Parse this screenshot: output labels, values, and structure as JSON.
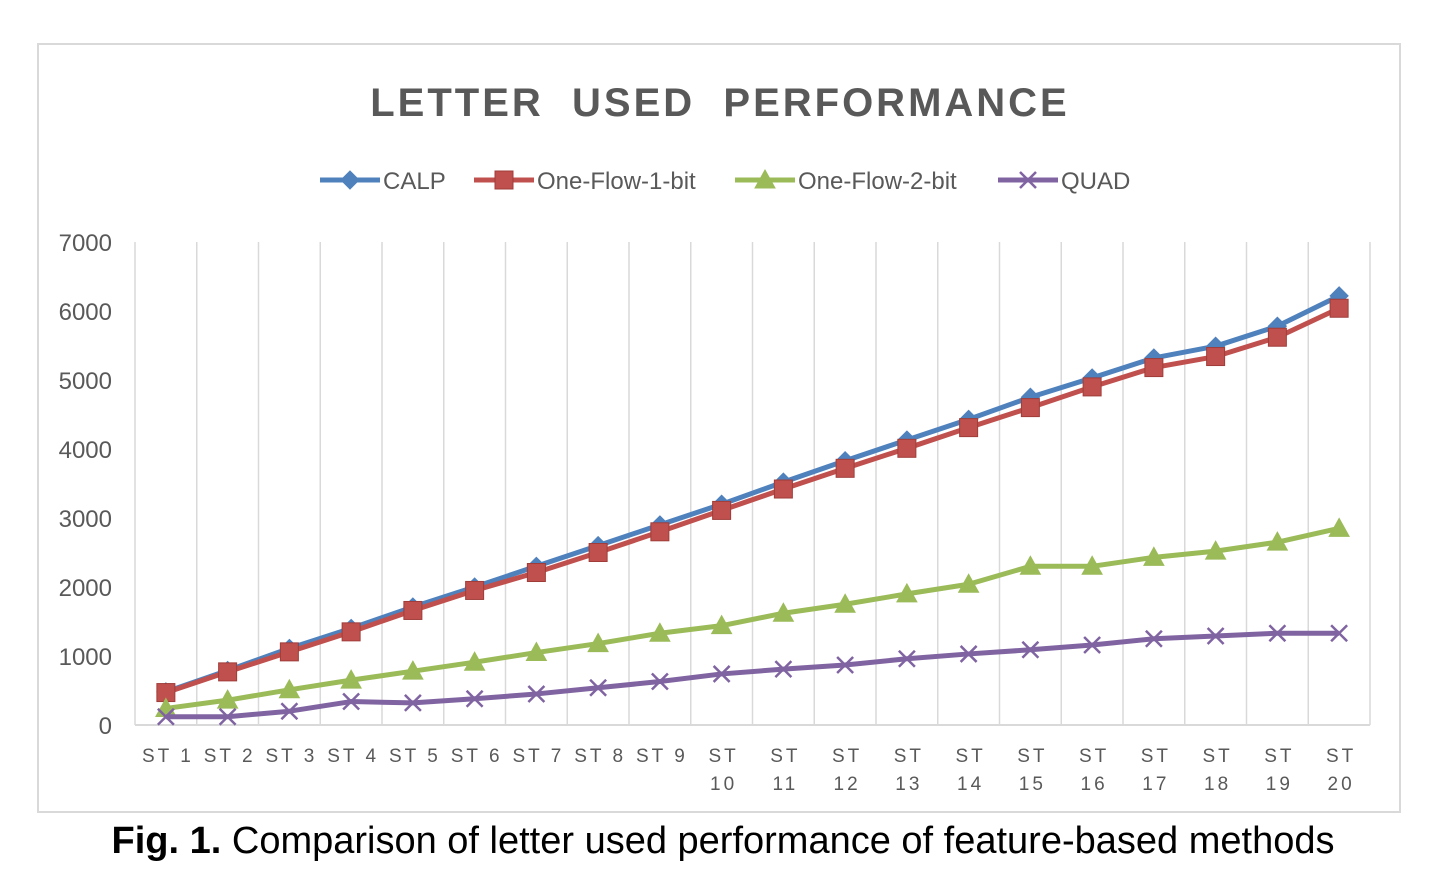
{
  "caption": {
    "label": "Fig. 1.",
    "text": "Comparison of letter used performance of feature-based methods"
  },
  "chart_data": {
    "type": "line",
    "title": "LETTER  USED  PERFORMANCE",
    "xlabel": "",
    "ylabel": "",
    "categories": [
      "ST 1",
      "ST 2",
      "ST 3",
      "ST 4",
      "ST 5",
      "ST 6",
      "ST 7",
      "ST 8",
      "ST 9",
      "ST 10",
      "ST 11",
      "ST 12",
      "ST 13",
      "ST 14",
      "ST 15",
      "ST 16",
      "ST 17",
      "ST 18",
      "ST 19",
      "ST 20"
    ],
    "category_lines": [
      [
        "ST 1"
      ],
      [
        "ST 2"
      ],
      [
        "ST 3"
      ],
      [
        "ST 4"
      ],
      [
        "ST 5"
      ],
      [
        "ST 6"
      ],
      [
        "ST 7"
      ],
      [
        "ST 8"
      ],
      [
        "ST 9"
      ],
      [
        "ST",
        "10"
      ],
      [
        "ST",
        "11"
      ],
      [
        "ST",
        "12"
      ],
      [
        "ST",
        "13"
      ],
      [
        "ST",
        "14"
      ],
      [
        "ST",
        "15"
      ],
      [
        "ST",
        "16"
      ],
      [
        "ST",
        "17"
      ],
      [
        "ST",
        "18"
      ],
      [
        "ST",
        "19"
      ],
      [
        "ST",
        "20"
      ]
    ],
    "ylim": [
      0,
      7000
    ],
    "yticks": [
      0,
      1000,
      2000,
      3000,
      4000,
      5000,
      6000,
      7000
    ],
    "grid": "vertical",
    "legend_position": "top",
    "series": [
      {
        "name": "CALP",
        "color": "#4f81bd",
        "marker": "diamond",
        "values": [
          480,
          790,
          1110,
          1400,
          1710,
          2000,
          2300,
          2600,
          2900,
          3200,
          3520,
          3830,
          4130,
          4430,
          4750,
          5030,
          5320,
          5490,
          5780,
          6220
        ]
      },
      {
        "name": "One-Flow-1-bit",
        "color": "#c0504d",
        "marker": "square",
        "values": [
          470,
          770,
          1060,
          1350,
          1660,
          1950,
          2210,
          2500,
          2800,
          3110,
          3420,
          3720,
          4010,
          4310,
          4600,
          4900,
          5180,
          5340,
          5620,
          6040
        ]
      },
      {
        "name": "One-Flow-2-bit",
        "color": "#9bbb59",
        "marker": "triangle",
        "values": [
          240,
          360,
          510,
          650,
          780,
          910,
          1050,
          1180,
          1330,
          1440,
          1620,
          1750,
          1900,
          2040,
          2300,
          2300,
          2430,
          2520,
          2650,
          2850
        ]
      },
      {
        "name": "QUAD",
        "color": "#8064a2",
        "marker": "x",
        "values": [
          120,
          120,
          200,
          340,
          320,
          380,
          450,
          540,
          630,
          740,
          810,
          870,
          960,
          1030,
          1090,
          1160,
          1250,
          1290,
          1330,
          1330
        ]
      }
    ]
  }
}
